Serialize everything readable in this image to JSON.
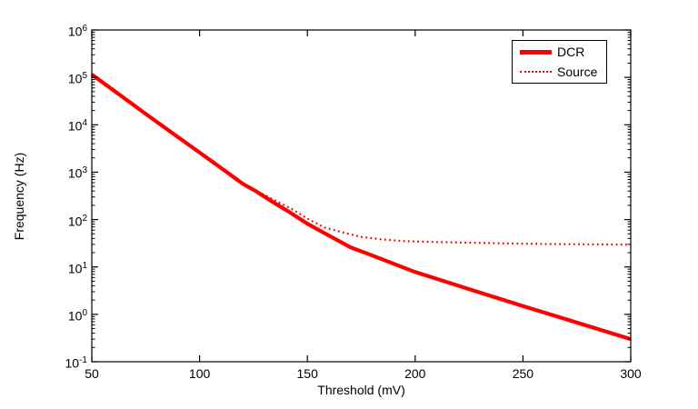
{
  "accent_color": "#ff0000",
  "axis_color": "#000000",
  "background_color": "#ffffff",
  "legend": {
    "position": "top-right",
    "items": [
      {
        "label": "DCR",
        "style": "solid"
      },
      {
        "label": "Source",
        "style": "dotted"
      }
    ]
  },
  "chart_data": {
    "type": "line",
    "title": "",
    "xlabel": "Threshold (mV)",
    "ylabel": "Frequency (Hz)",
    "grid": false,
    "x_axis": {
      "min": 50,
      "max": 300,
      "ticks": [
        50,
        100,
        150,
        200,
        250,
        300
      ]
    },
    "y_axis": {
      "scale": "log",
      "min_exp": -1,
      "max_exp": 6,
      "tick_exponents": [
        6,
        5,
        4,
        3,
        2,
        1,
        0,
        -1
      ],
      "tick_base": 10
    },
    "series": [
      {
        "name": "DCR",
        "color": "#ff0000",
        "style": "solid",
        "stroke_width": 4.2,
        "points": [
          [
            50,
            115000
          ],
          [
            62,
            46000
          ],
          [
            75,
            17000
          ],
          [
            88,
            6400
          ],
          [
            100,
            2600
          ],
          [
            112,
            1050
          ],
          [
            120,
            570
          ],
          [
            126,
            400
          ],
          [
            133,
            250
          ],
          [
            141,
            150
          ],
          [
            150,
            82
          ],
          [
            160,
            46
          ],
          [
            170,
            26
          ],
          [
            178,
            19
          ],
          [
            200,
            7.8
          ],
          [
            225,
            3.4
          ],
          [
            250,
            1.5
          ],
          [
            275,
            0.67
          ],
          [
            300,
            0.3
          ]
        ]
      },
      {
        "name": "Source",
        "color": "#ff0000",
        "style": "dotted",
        "stroke_width": 2.2,
        "points": [
          [
            50,
            115000
          ],
          [
            62,
            46000
          ],
          [
            75,
            17000
          ],
          [
            88,
            6400
          ],
          [
            100,
            2600
          ],
          [
            112,
            1050
          ],
          [
            120,
            580
          ],
          [
            128,
            370
          ],
          [
            136,
            240
          ],
          [
            143,
            165
          ],
          [
            150,
            105
          ],
          [
            158,
            68
          ],
          [
            166,
            54
          ],
          [
            175,
            43
          ],
          [
            185,
            38
          ],
          [
            195,
            35
          ],
          [
            210,
            33.5
          ],
          [
            225,
            32.5
          ],
          [
            240,
            31.5
          ],
          [
            260,
            30.5
          ],
          [
            280,
            30
          ],
          [
            300,
            29.5
          ]
        ]
      }
    ]
  }
}
